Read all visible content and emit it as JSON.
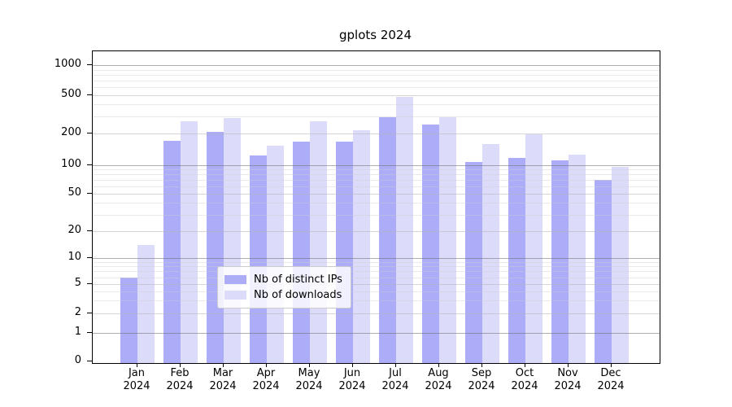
{
  "title": "gplots 2024",
  "chart_data": {
    "type": "bar",
    "title": "gplots 2024",
    "scale": "pseudo-log",
    "grid": true,
    "legend_position": "lower center",
    "xlabel": "",
    "ylabel": "",
    "categories": [
      "Jan",
      "Feb",
      "Mar",
      "Apr",
      "May",
      "Jun",
      "Jul",
      "Aug",
      "Sep",
      "Oct",
      "Nov",
      "Dec"
    ],
    "category_year": "2024",
    "yticks": [
      0,
      1,
      2,
      5,
      10,
      20,
      50,
      100,
      200,
      500,
      1000
    ],
    "ylim": [
      0,
      1400
    ],
    "series": [
      {
        "name": "Nb of distinct IPs",
        "color": "#acacf8",
        "values": [
          6,
          170,
          210,
          124,
          168,
          168,
          295,
          246,
          108,
          118,
          112,
          70
        ]
      },
      {
        "name": "Nb of downloads",
        "color": "#dcdcfa",
        "values": [
          14,
          266,
          290,
          154,
          270,
          215,
          480,
          295,
          160,
          195,
          125,
          97
        ]
      }
    ]
  },
  "colors": {
    "bar_distinct_ips": "#acacf8",
    "bar_downloads": "#dcdcfa",
    "grid_major": "rgba(110,110,110,0.55)",
    "grid_medium": "rgba(180,180,180,0.55)",
    "grid_minor": "rgba(205,205,205,0.42)",
    "frame": "#000000"
  }
}
